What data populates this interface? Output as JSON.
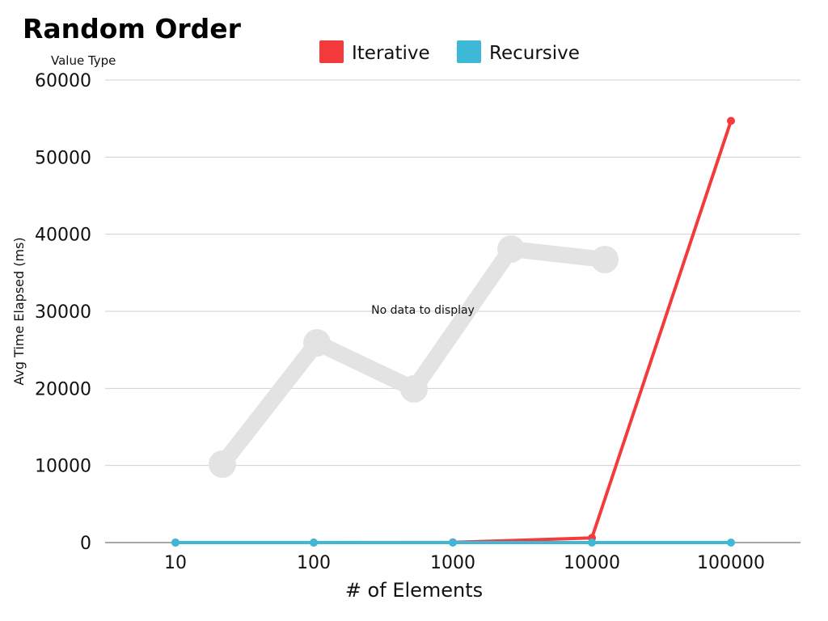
{
  "chart_data": {
    "type": "line",
    "title": "Random Order",
    "value_type_label": "Value Type",
    "xlabel": "# of Elements",
    "ylabel": "Avg Time Elapsed (ms)",
    "x_scale": "log",
    "categories": [
      "10",
      "100",
      "1000",
      "10000",
      "100000"
    ],
    "x": [
      10,
      100,
      1000,
      10000,
      100000
    ],
    "ylim": [
      0,
      60000
    ],
    "y_ticks": [
      0,
      10000,
      20000,
      30000,
      40000,
      50000,
      60000
    ],
    "y_tick_labels": [
      "0",
      "10000",
      "20000",
      "30000",
      "40000",
      "50000",
      "60000"
    ],
    "grid": true,
    "legend_position": "top",
    "series": [
      {
        "name": "Iterative",
        "color": "#f43a3a",
        "values": [
          0,
          0,
          20,
          600,
          54700
        ]
      },
      {
        "name": "Recursive",
        "color": "#3db8d6",
        "values": [
          0,
          0,
          0,
          0,
          0
        ]
      }
    ],
    "placeholder": {
      "text": "No data to display",
      "color": "#e3e3e3"
    }
  }
}
